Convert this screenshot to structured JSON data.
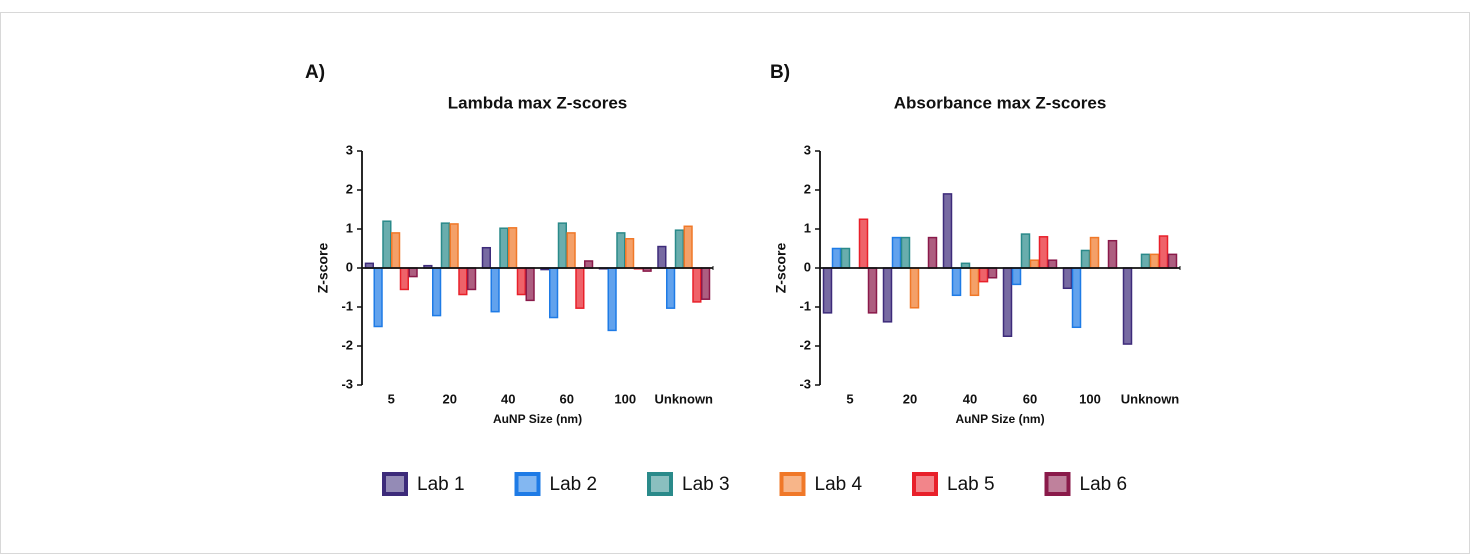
{
  "chart_data": [
    {
      "type": "bar",
      "panel_label": "A)",
      "title": "Lambda max Z-scores",
      "x_label": "AuNP Size (nm)",
      "y_label": "Z-score",
      "categories": [
        "5",
        "20",
        "40",
        "60",
        "100",
        "Unknown"
      ],
      "ylim": [
        -3,
        3
      ],
      "yticks": [
        -3,
        -2,
        -1,
        0,
        1,
        2,
        3
      ],
      "series": [
        {
          "name": "Lab 1",
          "color": "#3d2b7a",
          "values": [
            0.12,
            0.06,
            0.52,
            -0.04,
            -0.02,
            0.55
          ]
        },
        {
          "name": "Lab 2",
          "color": "#1e7be6",
          "values": [
            -1.5,
            -1.22,
            -1.12,
            -1.27,
            -1.6,
            -1.03
          ]
        },
        {
          "name": "Lab 3",
          "color": "#2a8a8a",
          "values": [
            1.2,
            1.15,
            1.02,
            1.15,
            0.9,
            0.97
          ]
        },
        {
          "name": "Lab 4",
          "color": "#f07828",
          "values": [
            0.9,
            1.13,
            1.03,
            0.9,
            0.75,
            1.07
          ]
        },
        {
          "name": "Lab 5",
          "color": "#e8202a",
          "values": [
            -0.55,
            -0.68,
            -0.68,
            -1.03,
            -0.02,
            -0.87
          ]
        },
        {
          "name": "Lab 6",
          "color": "#8a1a4a",
          "values": [
            -0.22,
            -0.55,
            -0.83,
            0.18,
            -0.08,
            -0.8
          ]
        }
      ]
    },
    {
      "type": "bar",
      "panel_label": "B)",
      "title": "Absorbance max Z-scores",
      "x_label": "AuNP Size (nm)",
      "y_label": "Z-score",
      "categories": [
        "5",
        "20",
        "40",
        "60",
        "100",
        "Unknown"
      ],
      "ylim": [
        -3,
        3
      ],
      "yticks": [
        -3,
        -2,
        -1,
        0,
        1,
        2,
        3
      ],
      "series": [
        {
          "name": "Lab 1",
          "color": "#3d2b7a",
          "values": [
            -1.15,
            -1.38,
            1.9,
            -1.75,
            -0.52,
            -1.95
          ]
        },
        {
          "name": "Lab 2",
          "color": "#1e7be6",
          "values": [
            0.5,
            0.78,
            -0.7,
            -0.42,
            -1.52,
            0
          ]
        },
        {
          "name": "Lab 3",
          "color": "#2a8a8a",
          "values": [
            0.5,
            0.78,
            0.12,
            0.87,
            0.45,
            0.35
          ]
        },
        {
          "name": "Lab 4",
          "color": "#f07828",
          "values": [
            0,
            -1.02,
            -0.7,
            0.2,
            0.78,
            0.35
          ]
        },
        {
          "name": "Lab 5",
          "color": "#e8202a",
          "values": [
            1.25,
            0,
            -0.35,
            0.8,
            0,
            0.82
          ]
        },
        {
          "name": "Lab 6",
          "color": "#8a1a4a",
          "values": [
            -1.15,
            0.78,
            -0.25,
            0.2,
            0.7,
            0.35
          ]
        }
      ]
    }
  ]
}
